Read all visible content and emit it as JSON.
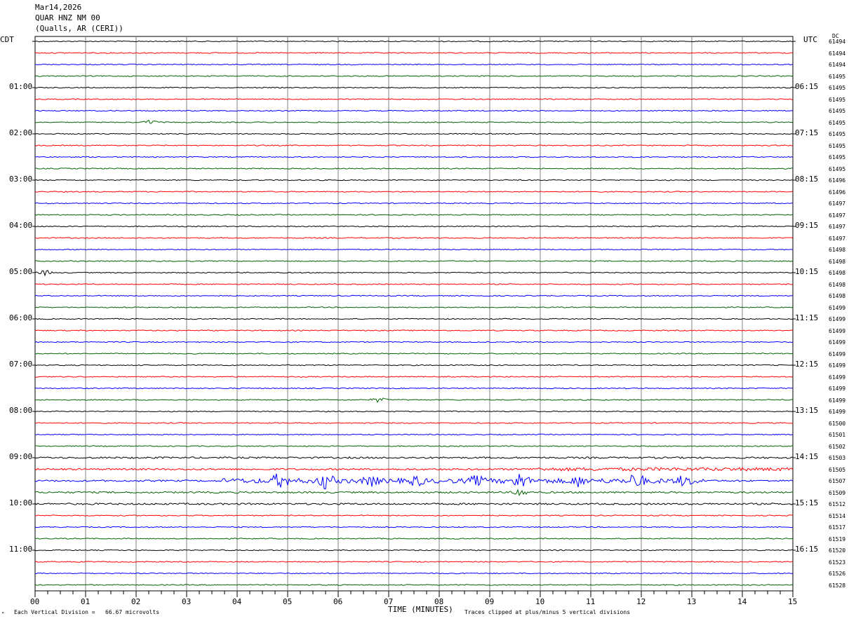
{
  "header": {
    "date": "Mar14,2026",
    "station": "QUAR HNZ NM 00",
    "location": "(Qualls, AR (CERI))"
  },
  "left_zone_label": "CDT",
  "right_zone_label": "UTC",
  "dc_header": "DC",
  "footer": {
    "scale_note": "Each Vertical Division =   66.67 microvolts",
    "clip_note": "Traces clipped at plus/minus 5 vertical divisions",
    "corner_mark": "ᴹ"
  },
  "chart_data": {
    "type": "line",
    "title": "",
    "xlabel": "TIME (MINUTES)",
    "xlim": [
      0,
      15
    ],
    "x_ticks": [
      "00",
      "01",
      "02",
      "03",
      "04",
      "05",
      "06",
      "07",
      "08",
      "09",
      "10",
      "11",
      "12",
      "13",
      "14",
      "15"
    ],
    "trace_colors": [
      "#000000",
      "#ff0000",
      "#0000ff",
      "#006400"
    ],
    "left_hour_labels": [
      "01:00",
      "02:00",
      "03:00",
      "04:00",
      "05:00",
      "06:00",
      "07:00",
      "08:00",
      "09:00",
      "10:00",
      "11:00"
    ],
    "right_hour_labels": [
      "06:15",
      "07:15",
      "08:15",
      "09:15",
      "10:15",
      "11:15",
      "12:15",
      "13:15",
      "14:15",
      "15:15",
      "16:15"
    ],
    "dc_offsets": [
      "61494",
      "61494",
      "61494",
      "61495",
      "61495",
      "61495",
      "61495",
      "61495",
      "61495",
      "61495",
      "61495",
      "61495",
      "61496",
      "61496",
      "61497",
      "61497",
      "61497",
      "61497",
      "61498",
      "61498",
      "61498",
      "61498",
      "61498",
      "61499",
      "61499",
      "61499",
      "61499",
      "61499",
      "61499",
      "61499",
      "61499",
      "61499",
      "61499",
      "61500",
      "61501",
      "61502",
      "61503",
      "61505",
      "61507",
      "61509",
      "61512",
      "61514",
      "61517",
      "61519",
      "61520",
      "61523",
      "61526",
      "61528"
    ],
    "events": [
      {
        "trace": 38,
        "minute": 4.85,
        "amplitude": "high"
      },
      {
        "trace": 38,
        "minute": 5.75,
        "amplitude": "high"
      },
      {
        "trace": 38,
        "minute": 6.65,
        "amplitude": "medium"
      },
      {
        "trace": 38,
        "minute": 7.55,
        "amplitude": "medium"
      },
      {
        "trace": 38,
        "minute": 8.75,
        "amplitude": "medium"
      },
      {
        "trace": 38,
        "minute": 9.6,
        "amplitude": "high"
      },
      {
        "trace": 38,
        "minute": 10.75,
        "amplitude": "medium"
      },
      {
        "trace": 38,
        "minute": 11.9,
        "amplitude": "high"
      },
      {
        "trace": 38,
        "minute": 12.85,
        "amplitude": "medium"
      },
      {
        "trace": 39,
        "minute": 9.6,
        "amplitude": "medium"
      },
      {
        "trace": 31,
        "minute": 6.8,
        "amplitude": "low"
      },
      {
        "trace": 20,
        "minute": 0.2,
        "amplitude": "low"
      },
      {
        "trace": 7,
        "minute": 2.3,
        "amplitude": "low"
      }
    ]
  }
}
